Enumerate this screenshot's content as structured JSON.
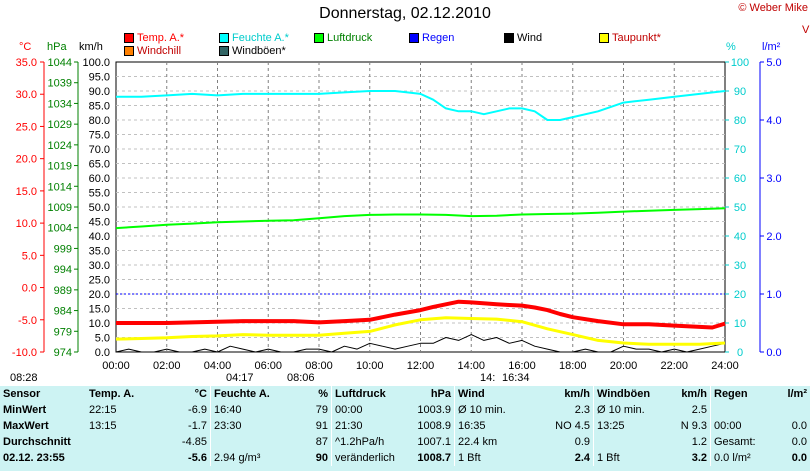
{
  "header": {
    "title": "Donnerstag, 02.12.2010",
    "copyright": "© Weber Mike"
  },
  "legend": [
    {
      "name": "Temp. A.*",
      "color": "#ff0000"
    },
    {
      "name": "Feuchte A.*",
      "color": "#00ffff"
    },
    {
      "name": "Luftdruck",
      "color": "#00ff00"
    },
    {
      "name": "Regen",
      "color": "#0000ff"
    },
    {
      "name": "Wind",
      "color": "#000000"
    },
    {
      "name": "Taupunkt*",
      "color": "#ffff00"
    },
    {
      "name": "Windchill",
      "color": "#ff8000"
    },
    {
      "name": "Windböen*",
      "color": "#336666"
    }
  ],
  "units": {
    "temp": "°C",
    "pressure": "hPa",
    "wind": "km/h",
    "humidity": "%",
    "rain": "l/m²",
    "right_edge": "V"
  },
  "chart_data": {
    "type": "line",
    "x_ticks": [
      "00:00",
      "02:00",
      "04:00",
      "06:00",
      "08:00",
      "10:00",
      "12:00",
      "14:00",
      "16:00",
      "18:00",
      "20:00",
      "22:00",
      "24:00"
    ],
    "axes": {
      "temp_ticks": [
        "35.0",
        "30.0",
        "25.0",
        "20.0",
        "15.0",
        "10.0",
        "5.0",
        "0.0",
        "-5.0",
        "-10.0"
      ],
      "temp_ylim": [
        -10,
        35
      ],
      "pressure_ticks": [
        "1044",
        "1039",
        "1034",
        "1029",
        "1024",
        "1019",
        "1014",
        "1009",
        "1004",
        "999",
        "994",
        "989",
        "984",
        "979",
        "974"
      ],
      "pressure_ylim": [
        974,
        1044
      ],
      "wind_ticks": [
        "100.0",
        "95.0",
        "90.0",
        "85.0",
        "80.0",
        "75.0",
        "70.0",
        "65.0",
        "60.0",
        "55.0",
        "50.0",
        "45.0",
        "40.0",
        "35.0",
        "30.0",
        "25.0",
        "20.0",
        "15.0",
        "10.0",
        "5.0",
        "0.0"
      ],
      "wind_ylim": [
        0,
        100
      ],
      "humidity_ticks": [
        "100",
        "90",
        "80",
        "70",
        "60",
        "50",
        "40",
        "30",
        "20",
        "10",
        "0"
      ],
      "humidity_ylim": [
        0,
        100
      ],
      "rain_ticks": [
        "5.0",
        "4.0",
        "3.0",
        "2.0",
        "1.0",
        "0.0"
      ],
      "rain_ylim": [
        0,
        5
      ]
    },
    "series": [
      {
        "name": "Temp. A.*",
        "unit": "°C",
        "color": "#ff0000",
        "x": [
          0,
          1,
          2,
          3,
          4,
          5,
          6,
          7,
          8,
          9,
          10,
          11,
          12,
          12.5,
          13,
          13.5,
          14,
          15,
          15.5,
          16,
          16.5,
          17,
          17.5,
          18,
          19,
          20,
          21,
          22,
          22.5,
          23,
          23.5,
          24
        ],
        "y": [
          -5.5,
          -5.5,
          -5.5,
          -5.4,
          -5.3,
          -5.2,
          -5.2,
          -5.2,
          -5.4,
          -5.2,
          -5.0,
          -4.2,
          -3.5,
          -3.0,
          -2.6,
          -2.2,
          -2.3,
          -2.6,
          -2.7,
          -2.8,
          -3.1,
          -3.5,
          -4.1,
          -4.6,
          -5.2,
          -5.7,
          -5.7,
          -5.9,
          -6.0,
          -6.1,
          -6.2,
          -5.6
        ]
      },
      {
        "name": "Feuchte A.*",
        "unit": "%",
        "color": "#00ffff",
        "x": [
          0,
          1,
          2,
          3,
          4,
          5,
          6,
          7,
          8,
          9,
          10,
          11,
          12,
          12.5,
          13,
          13.5,
          14,
          14.5,
          15,
          15.5,
          16,
          16.5,
          17,
          17.5,
          18,
          19,
          20,
          21,
          22,
          23,
          24
        ],
        "y": [
          88,
          88,
          88.5,
          89,
          88.5,
          89,
          89,
          89,
          89,
          89.5,
          90,
          90,
          89,
          87,
          84,
          83,
          83,
          82,
          83,
          84,
          84,
          83,
          80,
          80,
          81,
          83,
          86,
          87,
          88,
          89,
          90
        ]
      },
      {
        "name": "Luftdruck",
        "unit": "hPa",
        "color": "#00ff00",
        "x": [
          0,
          1,
          2,
          3,
          4,
          5,
          6,
          7,
          8,
          9,
          10,
          11,
          12,
          13,
          14,
          15,
          16,
          17,
          18,
          19,
          20,
          21,
          22,
          23,
          24
        ],
        "y": [
          1003.9,
          1004.3,
          1004.7,
          1005.0,
          1005.3,
          1005.5,
          1005.7,
          1005.8,
          1006.3,
          1006.8,
          1007.1,
          1007.2,
          1007.2,
          1007.1,
          1006.8,
          1006.9,
          1007.2,
          1007.3,
          1007.4,
          1007.6,
          1007.9,
          1008.1,
          1008.3,
          1008.5,
          1008.7
        ]
      },
      {
        "name": "Taupunkt*",
        "unit": "°C",
        "color": "#ffff00",
        "x": [
          0,
          1,
          2,
          3,
          4,
          5,
          6,
          7,
          8,
          9,
          10,
          11,
          12,
          13,
          14,
          15,
          16,
          17,
          18,
          19,
          20,
          21,
          22,
          23,
          24
        ],
        "y": [
          -8.0,
          -7.9,
          -7.8,
          -7.6,
          -7.5,
          -7.3,
          -7.4,
          -7.4,
          -7.4,
          -7.1,
          -6.8,
          -5.8,
          -5.0,
          -4.7,
          -4.8,
          -4.9,
          -5.3,
          -6.4,
          -7.3,
          -8.2,
          -8.6,
          -8.8,
          -8.8,
          -8.8,
          -8.6
        ]
      },
      {
        "name": "Wind",
        "unit": "km/h",
        "color": "#000000",
        "x": [
          0,
          0.5,
          1,
          1.5,
          2,
          2.5,
          3,
          3.5,
          4,
          4.5,
          5,
          5.5,
          6,
          6.5,
          7,
          7.5,
          8,
          8.5,
          9,
          9.5,
          10,
          10.5,
          11,
          11.5,
          12,
          12.5,
          13,
          13.5,
          14,
          14.5,
          15,
          15.5,
          16,
          16.5,
          17,
          17.5,
          18,
          18.5,
          19,
          19.5,
          20,
          20.5,
          21,
          21.5,
          22,
          22.5,
          23,
          23.5,
          24
        ],
        "y": [
          0,
          1,
          0,
          0,
          1,
          0,
          0,
          1,
          0,
          2,
          1,
          0,
          1,
          0,
          0,
          1,
          1,
          0,
          2,
          1,
          3,
          2,
          1,
          2,
          3,
          3,
          5,
          4,
          6,
          4,
          5,
          3,
          4,
          2,
          1,
          0,
          0,
          1,
          0,
          0,
          2,
          1,
          1,
          0,
          1,
          0,
          1,
          2,
          3
        ]
      }
    ],
    "markers": {
      "rain_ref_line_mm": 1.0
    }
  },
  "bottom_markers": [
    {
      "text": "08:28"
    },
    {
      "text": "04:17"
    },
    {
      "text": "08:06"
    },
    {
      "text": "14:"
    },
    {
      "text": "16:34"
    }
  ],
  "stats": {
    "headers": {
      "sensor": "Sensor",
      "temp": "Temp. A.",
      "temp_unit": "°C",
      "hum": "Feuchte A.",
      "hum_unit": "%",
      "press": "Luftdruck",
      "press_unit": "hPa",
      "wind": "Wind",
      "wind_unit": "km/h",
      "gust": "Windböen",
      "gust_unit": "km/h",
      "rain": "Regen",
      "rain_unit": "l/m²"
    },
    "rows": [
      {
        "label": "MinWert",
        "t_time": "22:15",
        "t_val": "-6.9",
        "h_time": "16:40",
        "h_val": "79",
        "p_time": "00:00",
        "p_val": "1003.9",
        "w_a": "Ø 10 min.",
        "w_val": "2.3",
        "g_a": "Ø 10 min.",
        "g_val": "2.5",
        "r_a": "",
        "r_val": ""
      },
      {
        "label": "MaxWert",
        "t_time": "13:15",
        "t_val": "-1.7",
        "h_time": "23:30",
        "h_val": "91",
        "p_time": "21:30",
        "p_val": "1008.9",
        "w_a": "16:35",
        "w_b": "NO 4.5",
        "g_a": "13:25",
        "g_val": "N 9.3",
        "r_a": "00:00",
        "r_val": "0.0"
      },
      {
        "label": "Durchschnitt",
        "t_time": "",
        "t_val": "-4.85",
        "h_time": "",
        "h_val": "87",
        "p_time": "^1.2hPa/h",
        "p_val": "1007.1",
        "w_a": "22.4 km",
        "w_val": "0.9",
        "g_a": "",
        "g_val": "1.2",
        "r_a": "Gesamt:",
        "r_val": "0.0"
      },
      {
        "label": "02.12. 23:55",
        "t_time": "",
        "t_val": "-5.6",
        "h_time": "2.94 g/m³",
        "h_val": "90",
        "p_time": "veränderlich",
        "p_val": "1008.7",
        "w_a": "1 Bft",
        "w_val": "2.4",
        "g_a": "1 Bft",
        "g_val": "3.2",
        "r_a": "0.0 l/m²",
        "r_val": "0.0"
      }
    ]
  }
}
